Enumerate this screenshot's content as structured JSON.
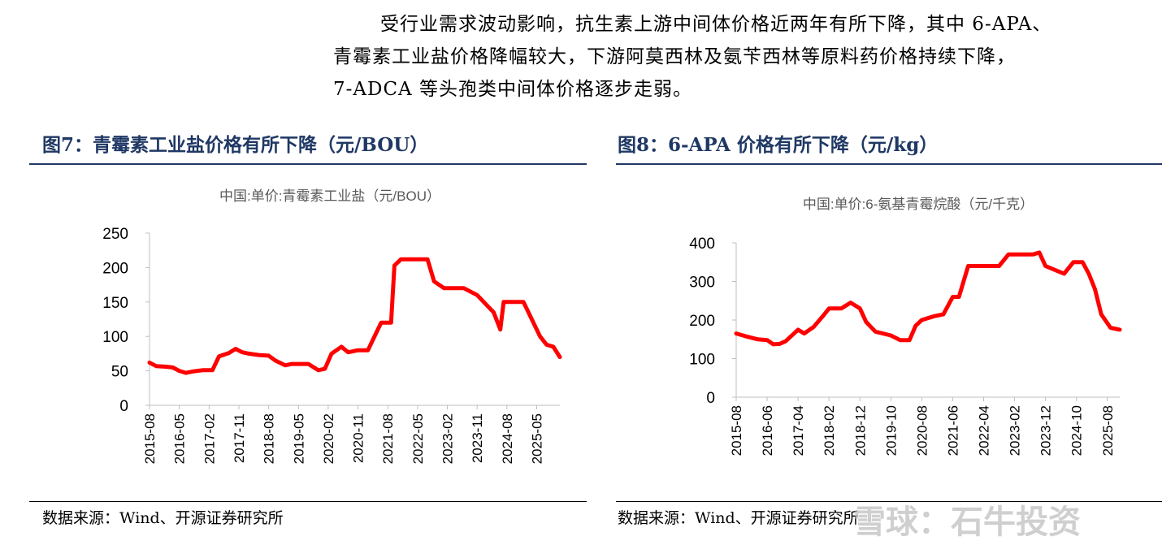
{
  "paragraph": {
    "line1": "受行业需求波动影响，抗生素上游中间体价格近两年有所下降，其中 6-APA、",
    "line2": "青霉素工业盐价格降幅较大，下游阿莫西林及氨苄西林等原料药价格持续下降，",
    "line3": "7-ADCA 等头孢类中间体价格逐步走弱。"
  },
  "figure7": {
    "title": "图7：青霉素工业盐价格有所下降（元/BOU）",
    "source": "数据来源：Wind、开源证券研究所"
  },
  "figure8": {
    "title": "图8：6-APA 价格有所下降（元/kg）",
    "source": "数据来源：Wind、开源证券研究所"
  },
  "watermark": "雪球：石牛投资",
  "colors": {
    "line": "#ff0000",
    "title": "#1f3864",
    "axis": "#bfbfbf",
    "tick": "#595959"
  },
  "chart_data": [
    {
      "type": "line",
      "title": "中国:单价:青霉素工业盐（元/BOU）",
      "x_range": [
        "2015-08",
        "2025-12"
      ],
      "ylim": [
        0,
        250
      ],
      "yticks": [
        "0",
        "50",
        "100",
        "150",
        "200",
        "250"
      ],
      "xticks": [
        "2015-08",
        "2016-05",
        "2017-02",
        "2017-11",
        "2018-08",
        "2019-05",
        "2020-02",
        "2020-11",
        "2021-08",
        "2022-05",
        "2023-02",
        "2023-11",
        "2024-08",
        "2025-05"
      ],
      "grid": false,
      "series": [
        {
          "x": [
            "2015-08",
            "2015-10",
            "2016-01",
            "2016-03",
            "2016-05",
            "2016-07",
            "2016-09",
            "2016-12",
            "2017-03",
            "2017-05",
            "2017-08",
            "2017-10",
            "2017-12",
            "2018-02",
            "2018-05",
            "2018-08",
            "2018-10",
            "2019-01",
            "2019-03",
            "2019-05",
            "2019-08",
            "2019-11",
            "2020-01",
            "2020-03",
            "2020-06",
            "2020-08",
            "2020-09",
            "2020-11",
            "2021-02",
            "2021-04",
            "2021-06",
            "2021-09",
            "2021-10",
            "2021-12",
            "2022-03",
            "2022-06",
            "2022-08",
            "2022-10",
            "2023-01",
            "2023-05",
            "2023-07",
            "2023-09",
            "2023-11",
            "2024-01",
            "2024-04",
            "2024-06",
            "2024-07",
            "2024-10",
            "2025-01",
            "2025-04",
            "2025-06",
            "2025-08",
            "2025-10",
            "2025-12"
          ],
          "y": [
            62,
            57,
            56,
            55,
            50,
            47,
            49,
            51,
            51,
            71,
            76,
            82,
            77,
            75,
            73,
            72,
            65,
            58,
            60,
            60,
            60,
            51,
            53,
            75,
            85,
            77,
            78,
            80,
            80,
            100,
            120,
            120,
            203,
            212,
            212,
            212,
            212,
            180,
            170,
            170,
            170,
            165,
            160,
            150,
            135,
            110,
            150,
            150,
            150,
            120,
            100,
            88,
            85,
            70
          ]
        }
      ]
    },
    {
      "type": "line",
      "title": "中国:单价:6-氨基青霉烷酸（元/千克）",
      "x_range": [
        "2015-08",
        "2025-12"
      ],
      "ylim": [
        0,
        400
      ],
      "yticks": [
        "0",
        "100",
        "200",
        "300",
        "400"
      ],
      "xticks": [
        "2015-08",
        "2016-06",
        "2017-04",
        "2018-02",
        "2018-12",
        "2019-10",
        "2020-08",
        "2021-06",
        "2022-04",
        "2023-02",
        "2023-12",
        "2024-10",
        "2025-08"
      ],
      "grid": false,
      "series": [
        {
          "x": [
            "2015-08",
            "2015-11",
            "2016-03",
            "2016-06",
            "2016-08",
            "2016-10",
            "2016-12",
            "2017-04",
            "2017-06",
            "2017-09",
            "2017-12",
            "2018-02",
            "2018-06",
            "2018-09",
            "2018-12",
            "2019-02",
            "2019-05",
            "2019-10",
            "2020-01",
            "2020-04",
            "2020-06",
            "2020-08",
            "2020-12",
            "2021-03",
            "2021-06",
            "2021-08",
            "2021-11",
            "2022-02",
            "2022-07",
            "2022-09",
            "2022-12",
            "2023-04",
            "2023-08",
            "2023-10",
            "2023-12",
            "2024-03",
            "2024-06",
            "2024-09",
            "2024-12",
            "2025-02",
            "2025-04",
            "2025-06",
            "2025-09",
            "2025-12"
          ],
          "y": [
            165,
            158,
            150,
            148,
            137,
            138,
            145,
            175,
            165,
            182,
            210,
            230,
            230,
            245,
            230,
            195,
            170,
            160,
            148,
            148,
            185,
            200,
            210,
            215,
            260,
            260,
            340,
            340,
            340,
            340,
            370,
            370,
            370,
            375,
            340,
            330,
            320,
            350,
            350,
            320,
            280,
            215,
            180,
            175
          ]
        }
      ]
    }
  ]
}
